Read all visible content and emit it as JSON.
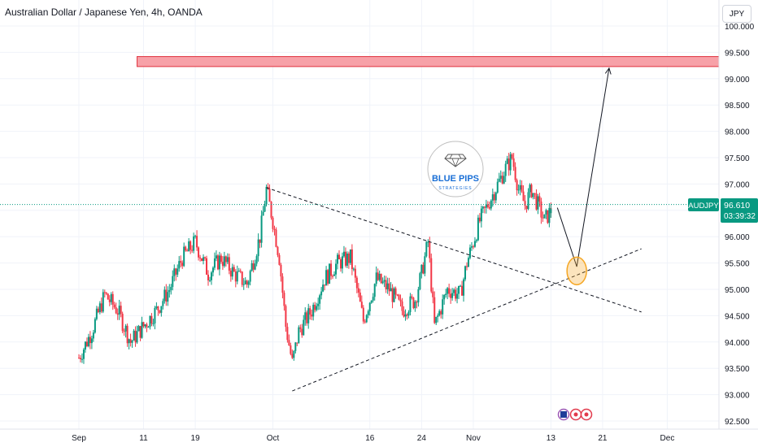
{
  "header": {
    "title": "Australian Dollar / Japanese Yen, 4h, OANDA",
    "currency_button": "JPY"
  },
  "price_badge": {
    "symbol": "AUDJPY",
    "price": "96.610",
    "countdown": "03:39:32",
    "color": "#089981"
  },
  "watermark": {
    "brand": "BLUE PIPS",
    "tagline": "STRATEGIES",
    "icon": "diamond-icon"
  },
  "colors": {
    "up": "#089981",
    "down": "#f23645",
    "zone_fill": "#f7a1a8",
    "zone_border": "#e0323e",
    "circle": "#f5a623"
  },
  "chart_data": {
    "type": "candlestick",
    "symbol": "AUDJPY",
    "timeframe": "4h",
    "y_ticks": [
      "100.000",
      "99.500",
      "99.000",
      "98.500",
      "98.000",
      "97.500",
      "97.000",
      "96.500",
      "96.000",
      "95.500",
      "95.000",
      "94.500",
      "94.000",
      "93.500",
      "93.000",
      "92.500"
    ],
    "x_ticks": [
      "Sep",
      "11",
      "19",
      "Oct",
      "16",
      "24",
      "Nov",
      "13",
      "21",
      "Dec"
    ],
    "ylim": [
      92.4,
      100.2
    ],
    "last_price": 96.61,
    "close_path": [
      {
        "x": "Sep 01",
        "y": 93.7
      },
      {
        "x": "Sep 03",
        "y": 94.2
      },
      {
        "x": "Sep 05",
        "y": 94.9
      },
      {
        "x": "Sep 07",
        "y": 94.6
      },
      {
        "x": "Sep 09",
        "y": 94.0
      },
      {
        "x": "Sep 11",
        "y": 94.3
      },
      {
        "x": "Sep 13",
        "y": 94.6
      },
      {
        "x": "Sep 15",
        "y": 95.0
      },
      {
        "x": "Sep 17",
        "y": 95.6
      },
      {
        "x": "Sep 19",
        "y": 95.9
      },
      {
        "x": "Sep 21",
        "y": 95.3
      },
      {
        "x": "Sep 23",
        "y": 95.6
      },
      {
        "x": "Sep 25",
        "y": 95.3
      },
      {
        "x": "Sep 27",
        "y": 95.1
      },
      {
        "x": "Sep 29",
        "y": 96.0
      },
      {
        "x": "Sep 30",
        "y": 96.9
      },
      {
        "x": "Oct 01",
        "y": 96.3
      },
      {
        "x": "Oct 02",
        "y": 95.6
      },
      {
        "x": "Oct 03",
        "y": 94.3
      },
      {
        "x": "Oct 04",
        "y": 93.6
      },
      {
        "x": "Oct 05",
        "y": 94.2
      },
      {
        "x": "Oct 07",
        "y": 94.6
      },
      {
        "x": "Oct 09",
        "y": 95.2
      },
      {
        "x": "Oct 11",
        "y": 95.5
      },
      {
        "x": "Oct 13",
        "y": 95.6
      },
      {
        "x": "Oct 15",
        "y": 94.4
      },
      {
        "x": "Oct 17",
        "y": 95.2
      },
      {
        "x": "Oct 19",
        "y": 95.0
      },
      {
        "x": "Oct 21",
        "y": 94.6
      },
      {
        "x": "Oct 23",
        "y": 94.8
      },
      {
        "x": "Oct 24",
        "y": 95.3
      },
      {
        "x": "Oct 25",
        "y": 95.9
      },
      {
        "x": "Oct 26",
        "y": 94.3
      },
      {
        "x": "Oct 28",
        "y": 95.0
      },
      {
        "x": "Oct 30",
        "y": 94.9
      },
      {
        "x": "Oct 31",
        "y": 95.5
      },
      {
        "x": "Nov 02",
        "y": 96.3
      },
      {
        "x": "Nov 04",
        "y": 96.8
      },
      {
        "x": "Nov 06",
        "y": 97.3
      },
      {
        "x": "Nov 07",
        "y": 97.5
      },
      {
        "x": "Nov 08",
        "y": 96.9
      },
      {
        "x": "Nov 09",
        "y": 96.6
      },
      {
        "x": "Nov 10",
        "y": 96.9
      },
      {
        "x": "Nov 11",
        "y": 96.6
      },
      {
        "x": "Nov 12",
        "y": 96.3
      },
      {
        "x": "Nov 13",
        "y": 96.5
      },
      {
        "x": "Nov 13",
        "y": 96.61
      }
    ],
    "drawings": {
      "resistance_zone": {
        "from": "Sep 10",
        "to": "Dec",
        "y_low": 99.23,
        "y_high": 99.42
      },
      "upper_trendline": [
        {
          "x": "Sep 30",
          "y": 96.93
        },
        {
          "x": "Nov 27",
          "y": 94.57
        }
      ],
      "lower_trendline": [
        {
          "x": "Oct 04",
          "y": 93.07
        },
        {
          "x": "Nov 27",
          "y": 95.77
        }
      ],
      "projection": [
        {
          "x": "Nov 14",
          "y": 96.55
        },
        {
          "x": "Nov 17",
          "y": 95.43
        },
        {
          "x": "Nov 22",
          "y": 99.2
        }
      ],
      "retest_circle": {
        "x": "Nov 17",
        "y": 95.35
      }
    }
  }
}
